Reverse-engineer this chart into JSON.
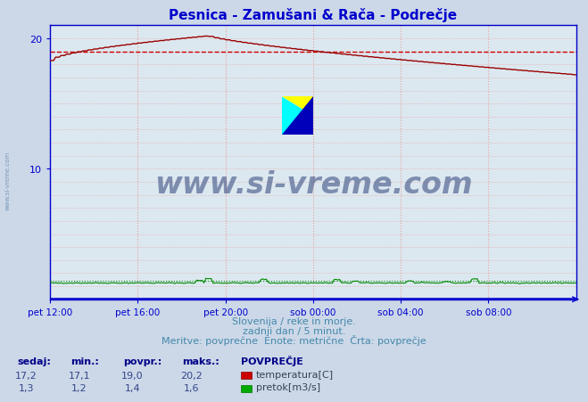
{
  "title": "Pesnica - Zamušani & Rača - Podrečje",
  "title_color": "#0000cc",
  "bg_color": "#ccd8e8",
  "plot_bg_color": "#dce8f0",
  "grid_color": "#e8a0a0",
  "grid_style": "dotted",
  "axis_color": "#0000cc",
  "tick_color": "#4488cc",
  "n_points": 288,
  "temp_color": "#990000",
  "flow_color": "#008800",
  "blue_line_color": "#0000cc",
  "avg_line_color": "#cc0000",
  "avg_line_value": 19.0,
  "ylim": [
    0,
    21
  ],
  "yticks": [
    10,
    20
  ],
  "xtick_labels": [
    "pet 12:00",
    "pet 16:00",
    "pet 20:00",
    "sob 00:00",
    "sob 04:00",
    "sob 08:00"
  ],
  "xtick_fractions": [
    0.0,
    0.1667,
    0.3333,
    0.5,
    0.6667,
    0.8333
  ],
  "watermark_text": "www.si-vreme.com",
  "watermark_color": "#0a2060",
  "watermark_alpha": 0.45,
  "footer_color": "#4488aa",
  "footer_line1": "Slovenija / reke in morje.",
  "footer_line2": "zadnji dan / 5 minut.",
  "footer_line3": "Meritve: povprečne  Enote: metrične  Črta: povprečje",
  "table_header_color": "#000088",
  "table_value_color": "#334488",
  "sidewatermark_color": "#6688aa"
}
